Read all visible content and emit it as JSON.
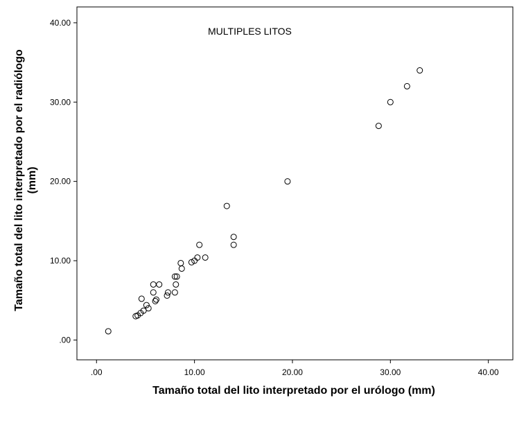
{
  "chart_data": {
    "type": "scatter",
    "annotation": "MULTIPLES LITOS",
    "xlabel": "Tamaño total del lito interpretado por el urólogo (mm)",
    "ylabel_line1": "Tamaño total del lito interpretado por el radiólogo",
    "ylabel_line2": "(mm)",
    "xlim": [
      -2.0,
      42.5
    ],
    "ylim": [
      -2.5,
      42.0
    ],
    "x_ticks": [
      {
        "value": 0,
        "label": ".00"
      },
      {
        "value": 10,
        "label": "10.00"
      },
      {
        "value": 20,
        "label": "20.00"
      },
      {
        "value": 30,
        "label": "30.00"
      },
      {
        "value": 40,
        "label": "40.00"
      }
    ],
    "y_ticks": [
      {
        "value": 0,
        "label": ".00"
      },
      {
        "value": 10,
        "label": "10.00"
      },
      {
        "value": 20,
        "label": "20.00"
      },
      {
        "value": 30,
        "label": "30.00"
      },
      {
        "value": 40,
        "label": "40.00"
      }
    ],
    "grid": false,
    "points": [
      {
        "x": 1.2,
        "y": 1.1
      },
      {
        "x": 4.0,
        "y": 3.0
      },
      {
        "x": 4.2,
        "y": 3.1
      },
      {
        "x": 4.5,
        "y": 3.4
      },
      {
        "x": 4.8,
        "y": 3.7
      },
      {
        "x": 4.6,
        "y": 5.2
      },
      {
        "x": 5.1,
        "y": 4.4
      },
      {
        "x": 5.3,
        "y": 4.0
      },
      {
        "x": 5.8,
        "y": 6.0
      },
      {
        "x": 5.8,
        "y": 7.0
      },
      {
        "x": 6.0,
        "y": 4.9
      },
      {
        "x": 6.1,
        "y": 5.1
      },
      {
        "x": 6.4,
        "y": 7.0
      },
      {
        "x": 7.2,
        "y": 5.6
      },
      {
        "x": 7.3,
        "y": 6.0
      },
      {
        "x": 8.0,
        "y": 6.0
      },
      {
        "x": 8.1,
        "y": 7.0
      },
      {
        "x": 8.0,
        "y": 8.0
      },
      {
        "x": 8.2,
        "y": 8.0
      },
      {
        "x": 8.6,
        "y": 9.7
      },
      {
        "x": 8.7,
        "y": 9.0
      },
      {
        "x": 9.7,
        "y": 9.8
      },
      {
        "x": 10.0,
        "y": 10.0
      },
      {
        "x": 10.3,
        "y": 10.4
      },
      {
        "x": 10.5,
        "y": 12.0
      },
      {
        "x": 11.1,
        "y": 10.4
      },
      {
        "x": 13.3,
        "y": 16.9
      },
      {
        "x": 14.0,
        "y": 13.0
      },
      {
        "x": 14.0,
        "y": 12.0
      },
      {
        "x": 19.5,
        "y": 20.0
      },
      {
        "x": 28.8,
        "y": 27.0
      },
      {
        "x": 30.0,
        "y": 30.0
      },
      {
        "x": 31.7,
        "y": 32.0
      },
      {
        "x": 33.0,
        "y": 34.0
      }
    ]
  }
}
